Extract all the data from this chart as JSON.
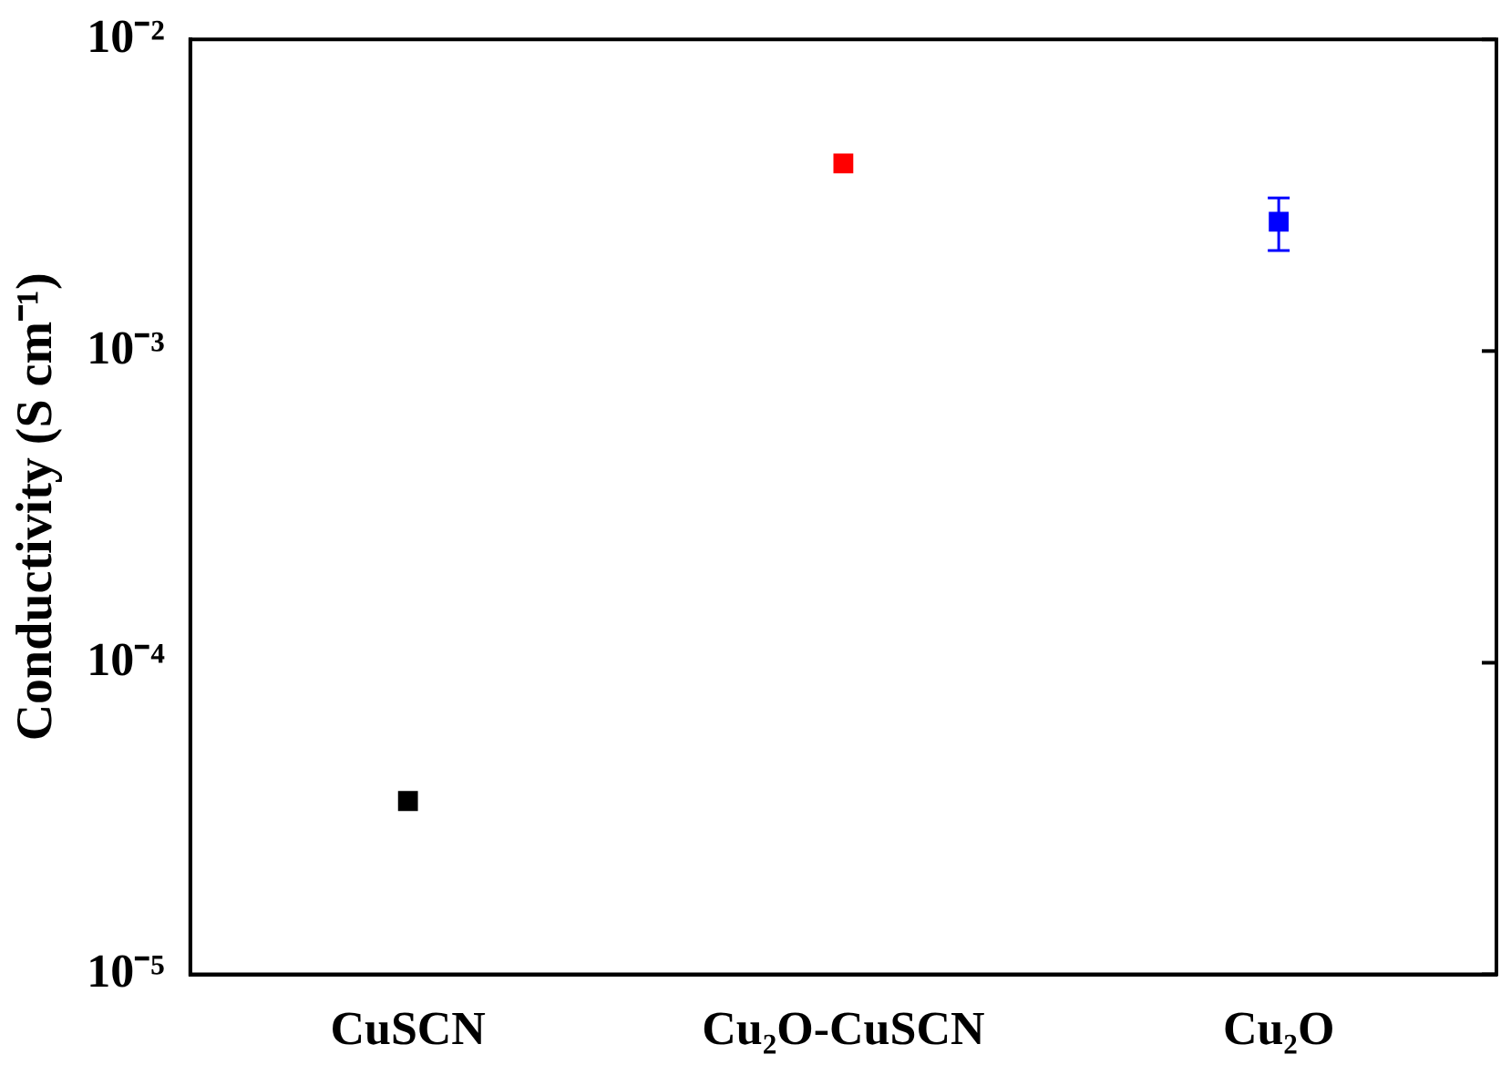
{
  "chart_data": {
    "type": "scatter",
    "ylabel": "Conductivity (S cm⁻¹)",
    "categories": [
      "CuSCN",
      "Cu₂O-CuSCN",
      "Cu₂O"
    ],
    "values": [
      3.6e-05,
      0.004,
      0.0026
    ],
    "colors": [
      "#000000",
      "#ff0000",
      "#0000ff"
    ],
    "errors": [
      null,
      null,
      [
        0.0021,
        0.0031
      ]
    ],
    "log": true,
    "marker": "square",
    "ylim": [
      1e-05,
      0.01
    ],
    "yticks": [
      {
        "value": 1e-05,
        "label": "10⁻⁵"
      },
      {
        "value": 0.0001,
        "label": "10⁻⁴"
      },
      {
        "value": 0.001,
        "label": "10⁻³"
      },
      {
        "value": 0.01,
        "label": "10⁻²"
      }
    ]
  }
}
